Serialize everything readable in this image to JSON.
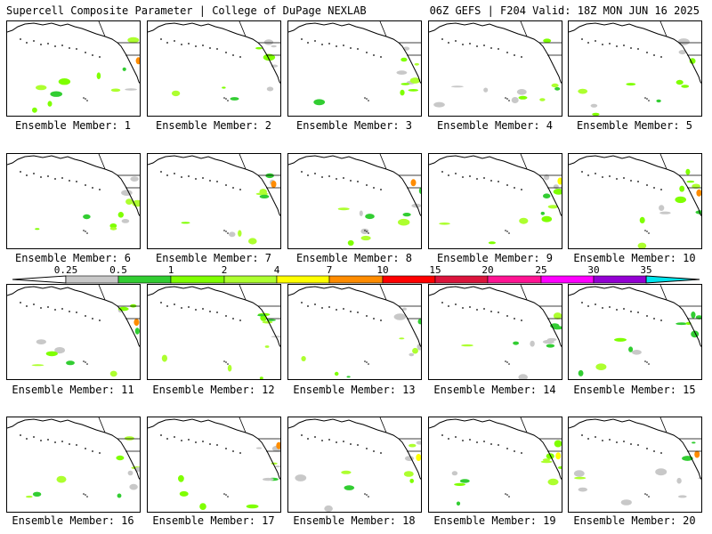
{
  "header": {
    "title": "Supercell Composite Parameter | College of DuPage NEXLAB",
    "run_info": "06Z GEFS | F204 Valid: 18Z MON JUN 16 2025"
  },
  "colorbar": {
    "labels": [
      "0.25",
      "0.5",
      "1",
      "2",
      "4",
      "7",
      "10",
      "15",
      "20",
      "25",
      "30",
      "35"
    ],
    "colors": [
      "#c8c8c8",
      "#32cd32",
      "#7fff00",
      "#adff2f",
      "#ffff00",
      "#ff8c00",
      "#ff0000",
      "#dc143c",
      "#ff1493",
      "#ff00ff",
      "#9400d3",
      "#9370db",
      "#00e5ee"
    ]
  },
  "panels": [
    {
      "caption": "Ensemble Member: 1"
    },
    {
      "caption": "Ensemble Member: 2"
    },
    {
      "caption": "Ensemble Member: 3"
    },
    {
      "caption": "Ensemble Member: 4"
    },
    {
      "caption": "Ensemble Member: 5"
    },
    {
      "caption": "Ensemble Member: 6"
    },
    {
      "caption": "Ensemble Member: 7"
    },
    {
      "caption": "Ensemble Member: 8"
    },
    {
      "caption": "Ensemble Member: 9"
    },
    {
      "caption": "Ensemble Member: 10"
    },
    {
      "caption": "Ensemble Member: 11"
    },
    {
      "caption": "Ensemble Member: 12"
    },
    {
      "caption": "Ensemble Member: 13"
    },
    {
      "caption": "Ensemble Member: 14"
    },
    {
      "caption": "Ensemble Member: 15"
    },
    {
      "caption": "Ensemble Member: 16"
    },
    {
      "caption": "Ensemble Member: 17"
    },
    {
      "caption": "Ensemble Member: 18"
    },
    {
      "caption": "Ensemble Member: 19"
    },
    {
      "caption": "Ensemble Member: 20"
    }
  ]
}
